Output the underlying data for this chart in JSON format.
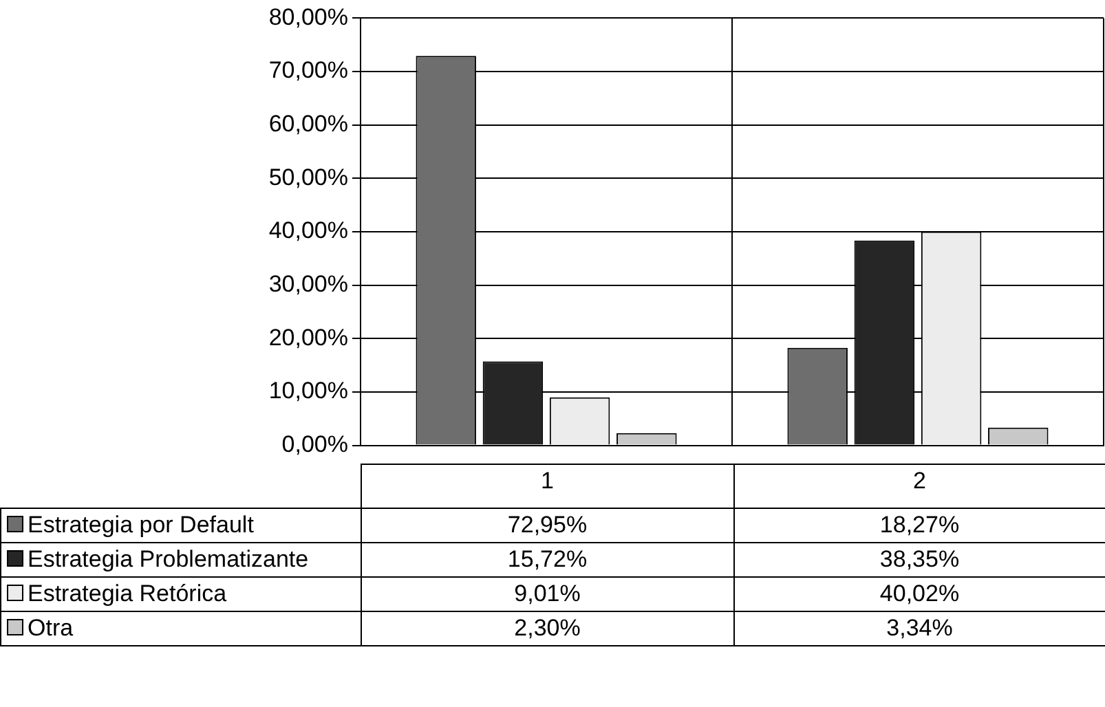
{
  "chart_data": {
    "type": "bar",
    "categories": [
      "1",
      "2"
    ],
    "series": [
      {
        "name": "Estrategia por Default",
        "color": "#6e6e6e",
        "values": [
          72.95,
          18.27
        ],
        "value_labels": [
          "72,95%",
          "18,27%"
        ]
      },
      {
        "name": "Estrategia Problematizante",
        "color": "#262626",
        "values": [
          15.72,
          38.35
        ],
        "value_labels": [
          "15,72%",
          "38,35%"
        ]
      },
      {
        "name": "Estrategia Retórica",
        "color": "#ececec",
        "values": [
          9.01,
          40.02
        ],
        "value_labels": [
          "9,01%",
          "40,02%"
        ]
      },
      {
        "name": "Otra",
        "color": "#c8c8c8",
        "values": [
          2.3,
          3.34
        ],
        "value_labels": [
          "2,30%",
          "3,34%"
        ]
      }
    ],
    "ylim": [
      0,
      80
    ],
    "yticks": [
      {
        "value": 0,
        "label": "0,00%"
      },
      {
        "value": 10,
        "label": "10,00%"
      },
      {
        "value": 20,
        "label": "20,00%"
      },
      {
        "value": 30,
        "label": "30,00%"
      },
      {
        "value": 40,
        "label": "40,00%"
      },
      {
        "value": 50,
        "label": "50,00%"
      },
      {
        "value": 60,
        "label": "60,00%"
      },
      {
        "value": 70,
        "label": "70,00%"
      },
      {
        "value": 80,
        "label": "80,00%"
      }
    ],
    "grid": "y",
    "legend": "bottom left"
  }
}
